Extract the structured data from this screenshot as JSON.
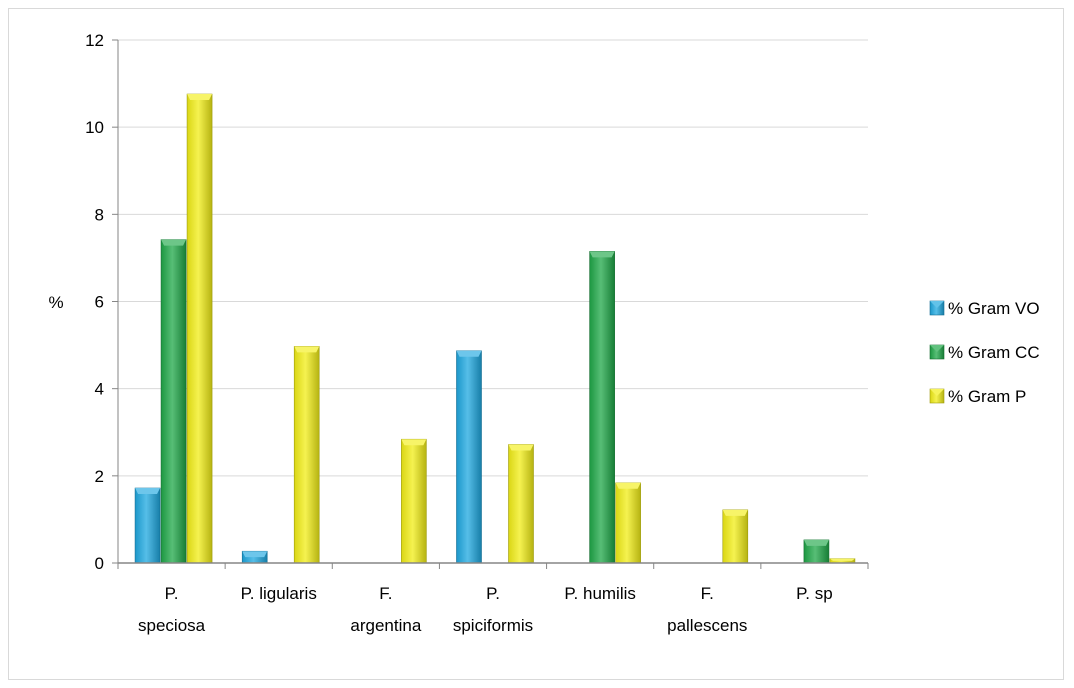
{
  "chart_data": {
    "type": "bar",
    "title": "",
    "xlabel": "",
    "ylabel": "%",
    "ylim": [
      0,
      12
    ],
    "yticks": [
      0,
      2,
      4,
      6,
      8,
      10,
      12
    ],
    "grid": true,
    "legend_position": "right",
    "categories": [
      [
        "P.",
        "speciosa"
      ],
      [
        "P. ligularis"
      ],
      [
        "F.",
        "argentina"
      ],
      [
        "P.",
        "spiciformis"
      ],
      [
        "P. humilis"
      ],
      [
        "F.",
        "pallescens"
      ],
      [
        "P. sp"
      ]
    ],
    "series": [
      {
        "name": "% Gram VO",
        "color": "#1ea8e0",
        "values": [
          1.72,
          0.27,
          0,
          4.87,
          0,
          0,
          0
        ]
      },
      {
        "name": "% Gram CC",
        "color": "#1fa848",
        "values": [
          7.42,
          0,
          0,
          0,
          7.15,
          0,
          0.53
        ]
      },
      {
        "name": "% Gram P",
        "color": "#f2ee16",
        "values": [
          10.76,
          4.97,
          2.84,
          2.72,
          1.84,
          1.22,
          0.1
        ]
      }
    ]
  }
}
